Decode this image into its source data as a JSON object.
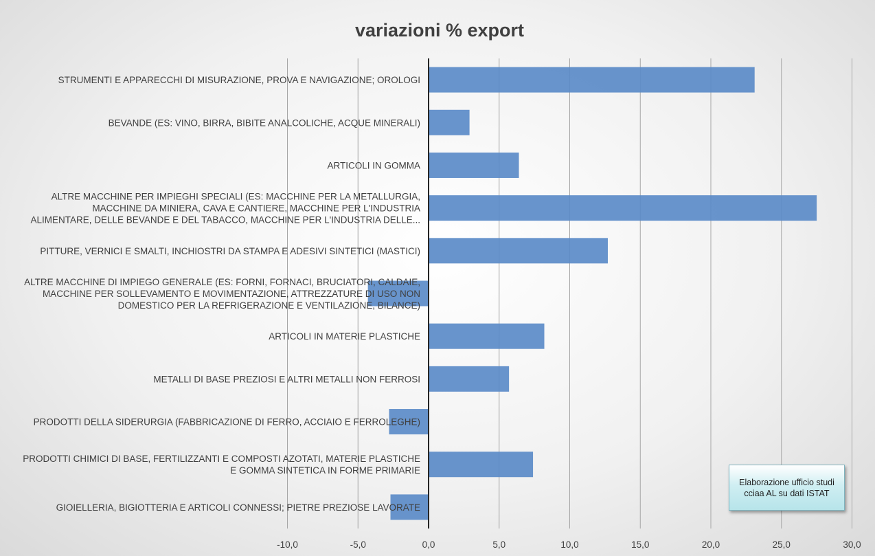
{
  "chart_data": {
    "type": "bar",
    "orientation": "horizontal",
    "title": "variazioni % export",
    "xlabel": "",
    "ylabel": "",
    "xlim": [
      -12,
      30
    ],
    "tick_values": [
      -10,
      -5,
      0,
      5,
      10,
      15,
      20,
      25,
      30
    ],
    "tick_labels": [
      "-10,0",
      "-5,0",
      "0,0",
      "5,0",
      "10,0",
      "15,0",
      "20,0",
      "25,0",
      "30,0"
    ],
    "grid": true,
    "legend": "none",
    "bar_color": "#5b8bc8",
    "categories": [
      [
        "STRUMENTI E APPARECCHI DI MISURAZIONE, PROVA E NAVIGAZIONE; OROLOGI"
      ],
      [
        "BEVANDE (ES: VINO, BIRRA, BIBITE ANALCOLICHE, ACQUE MINERALI)"
      ],
      [
        "ARTICOLI IN GOMMA"
      ],
      [
        "ALTRE MACCHINE PER IMPIEGHI SPECIALI (ES: MACCHINE PER LA METALLURGIA,",
        "MACCHINE DA MINIERA, CAVA E CANTIERE, MACCHINE PER L'INDUSTRIA",
        "ALIMENTARE, DELLE BEVANDE E DEL TABACCO, MACCHINE PER L'INDUSTRIA DELLE..."
      ],
      [
        "PITTURE, VERNICI E SMALTI, INCHIOSTRI DA STAMPA E ADESIVI SINTETICI (MASTICI)"
      ],
      [
        "ALTRE MACCHINE DI IMPIEGO GENERALE (ES: FORNI, FORNACI, BRUCIATORI, CALDAIE,",
        "MACCHINE PER SOLLEVAMENTO E MOVIMENTAZIONE, ATTREZZATURE DI USO NON",
        "DOMESTICO PER LA REFRIGERAZIONE E VENTILAZIONE, BILANCE)"
      ],
      [
        "ARTICOLI IN MATERIE PLASTICHE"
      ],
      [
        "METALLI DI BASE PREZIOSI E ALTRI METALLI NON FERROSI"
      ],
      [
        "PRODOTTI DELLA SIDERURGIA (FABBRICAZIONE DI FERRO, ACCIAIO E FERROLEGHE)"
      ],
      [
        "PRODOTTI CHIMICI DI BASE, FERTILIZZANTI E COMPOSTI AZOTATI, MATERIE PLASTICHE",
        "E GOMMA SINTETICA IN FORME PRIMARIE"
      ],
      [
        "GIOIELLERIA, BIGIOTTERIA E ARTICOLI CONNESSI; PIETRE PREZIOSE LAVORATE"
      ]
    ],
    "values": [
      23.1,
      2.9,
      6.4,
      27.5,
      12.7,
      -4.3,
      8.2,
      5.7,
      -2.8,
      7.4,
      -2.7
    ]
  },
  "note": {
    "text": "Elaborazione ufficio studi cciaa AL su dati ISTAT"
  }
}
